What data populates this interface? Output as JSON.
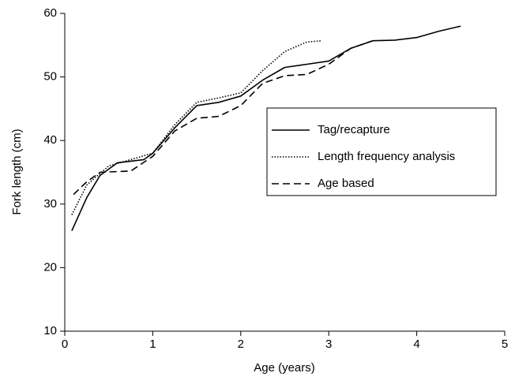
{
  "chart_data": {
    "type": "line",
    "xlabel": "Age (years)",
    "ylabel": "Fork length (cm)",
    "xlim": [
      0,
      5
    ],
    "xticks": [
      0,
      1,
      2,
      3,
      4,
      5
    ],
    "ylim": [
      10,
      60
    ],
    "yticks": [
      10,
      20,
      30,
      40,
      50,
      60
    ],
    "grid": false,
    "legend": "center right",
    "series": [
      {
        "name": "Tag/recapture",
        "color": "#000000",
        "dash": "solid",
        "x": [
          0.08,
          0.25,
          0.4,
          0.6,
          0.9,
          1.0,
          1.25,
          1.5,
          1.75,
          2.0,
          2.25,
          2.5,
          2.75,
          3.0,
          3.25,
          3.5,
          3.75,
          4.0,
          4.25,
          4.5
        ],
        "values": [
          25.8,
          31,
          34.5,
          36.5,
          37,
          38,
          42,
          45.5,
          46,
          47,
          49.5,
          51.5,
          52,
          52.5,
          54.5,
          55.7,
          55.8,
          56.2,
          57.2,
          58
        ]
      },
      {
        "name": "Length frequency analysis",
        "color": "#000000",
        "dash": "dotted",
        "x": [
          0.08,
          0.25,
          0.5,
          0.75,
          1.0,
          1.25,
          1.5,
          1.75,
          2.0,
          2.25,
          2.5,
          2.75,
          2.92
        ],
        "values": [
          28.3,
          33,
          36,
          37,
          38,
          42.5,
          46,
          46.7,
          47.5,
          51,
          54,
          55.5,
          55.7
        ]
      },
      {
        "name": "Age based",
        "color": "#000000",
        "dash": "dashed",
        "x": [
          0.1,
          0.25,
          0.4,
          0.75,
          1.0,
          1.25,
          1.5,
          1.75,
          2.0,
          2.25,
          2.5,
          2.75,
          3.0,
          3.25,
          3.5
        ],
        "values": [
          31.5,
          33.5,
          35,
          35.2,
          37.5,
          41.5,
          43.5,
          43.8,
          45.5,
          49,
          50.2,
          50.4,
          52,
          54.5,
          55.7
        ]
      }
    ]
  }
}
